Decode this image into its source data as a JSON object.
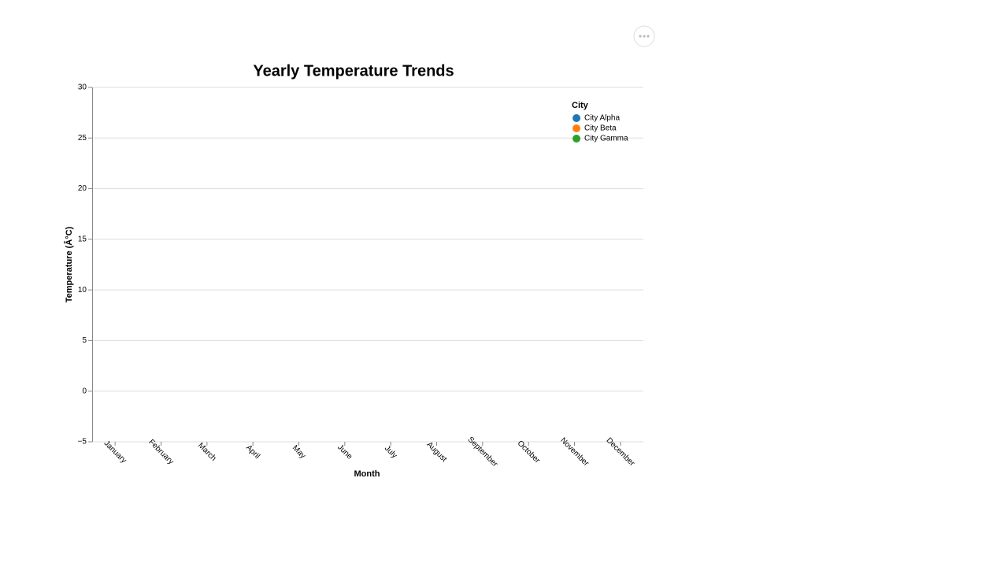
{
  "chart_data": {
    "type": "line",
    "title": "Yearly Temperature Trends",
    "x_label": "Month",
    "y_label": "Temperature (Â°C)",
    "categories": [
      "January",
      "February",
      "March",
      "April",
      "May",
      "June",
      "July",
      "August",
      "September",
      "October",
      "November",
      "December"
    ],
    "series": [
      {
        "name": "City Alpha",
        "color": "#1f77b4",
        "values": [
          null,
          null,
          null,
          null,
          null,
          null,
          null,
          null,
          null,
          null,
          null,
          null
        ]
      },
      {
        "name": "City Beta",
        "color": "#ff7f0e",
        "values": [
          null,
          null,
          null,
          null,
          null,
          null,
          null,
          null,
          null,
          null,
          null,
          null
        ]
      },
      {
        "name": "City Gamma",
        "color": "#2ca02c",
        "values": [
          null,
          null,
          null,
          null,
          null,
          null,
          null,
          null,
          null,
          null,
          null,
          null
        ]
      }
    ],
    "legend_title": "City",
    "legend": "top-right",
    "ylim": [
      -5,
      30
    ],
    "yticks": [
      {
        "value": -5,
        "label": "−5"
      },
      0,
      5,
      10,
      15,
      20,
      25,
      30
    ],
    "grid": true
  }
}
